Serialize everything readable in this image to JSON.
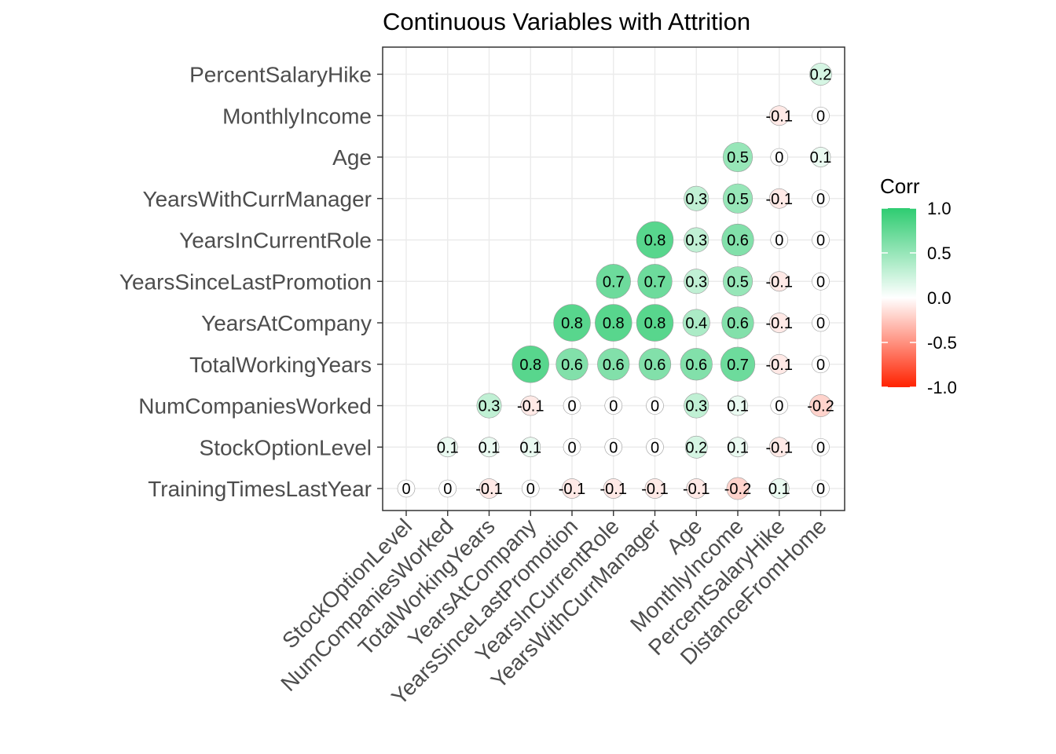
{
  "chart_data": {
    "type": "heatmap",
    "subtype": "lower-triangle correlation circles",
    "title": "Continuous Variables with Attrition",
    "x_categories": [
      "StockOptionLevel",
      "NumCompaniesWorked",
      "TotalWorkingYears",
      "YearsAtCompany",
      "YearsSinceLastPromotion",
      "YearsInCurrentRole",
      "YearsWithCurrManager",
      "Age",
      "MonthlyIncome",
      "PercentSalaryHike",
      "DistanceFromHome"
    ],
    "y_categories": [
      "TrainingTimesLastYear",
      "StockOptionLevel",
      "NumCompaniesWorked",
      "TotalWorkingYears",
      "YearsAtCompany",
      "YearsSinceLastPromotion",
      "YearsInCurrentRole",
      "YearsWithCurrManager",
      "Age",
      "MonthlyIncome",
      "PercentSalaryHike"
    ],
    "rows": [
      {
        "y": "TrainingTimesLastYear",
        "values": [
          0,
          0,
          -0.1,
          0,
          -0.1,
          -0.1,
          -0.1,
          -0.1,
          -0.2,
          0.1,
          0
        ]
      },
      {
        "y": "StockOptionLevel",
        "values": [
          null,
          0.1,
          0.1,
          0.1,
          0,
          0,
          0,
          0.2,
          0.1,
          -0.1,
          0
        ]
      },
      {
        "y": "NumCompaniesWorked",
        "values": [
          null,
          null,
          0.3,
          -0.1,
          0,
          0,
          0,
          0.3,
          0.1,
          0,
          -0.2
        ]
      },
      {
        "y": "TotalWorkingYears",
        "values": [
          null,
          null,
          null,
          0.8,
          0.6,
          0.6,
          0.6,
          0.6,
          0.7,
          -0.1,
          0
        ]
      },
      {
        "y": "YearsAtCompany",
        "values": [
          null,
          null,
          null,
          null,
          0.8,
          0.8,
          0.8,
          0.4,
          0.6,
          -0.1,
          0
        ]
      },
      {
        "y": "YearsSinceLastPromotion",
        "values": [
          null,
          null,
          null,
          null,
          null,
          0.7,
          0.7,
          0.3,
          0.5,
          -0.1,
          0
        ]
      },
      {
        "y": "YearsInCurrentRole",
        "values": [
          null,
          null,
          null,
          null,
          null,
          null,
          0.8,
          0.3,
          0.6,
          0,
          0
        ]
      },
      {
        "y": "YearsWithCurrManager",
        "values": [
          null,
          null,
          null,
          null,
          null,
          null,
          null,
          0.3,
          0.5,
          -0.1,
          0
        ]
      },
      {
        "y": "Age",
        "values": [
          null,
          null,
          null,
          null,
          null,
          null,
          null,
          null,
          0.5,
          0,
          0.1
        ]
      },
      {
        "y": "MonthlyIncome",
        "values": [
          null,
          null,
          null,
          null,
          null,
          null,
          null,
          null,
          null,
          -0.1,
          0
        ]
      },
      {
        "y": "PercentSalaryHike",
        "values": [
          null,
          null,
          null,
          null,
          null,
          null,
          null,
          null,
          null,
          null,
          0.2
        ]
      }
    ],
    "legend": {
      "title": "Corr",
      "ticks": [
        "1.0",
        "0.5",
        "0.0",
        "-0.5",
        "-1.0"
      ],
      "tick_values": [
        1,
        0.5,
        0,
        -0.5,
        -1
      ],
      "placement": "right"
    },
    "colors": {
      "high": "#2ECC71",
      "mid": "#FFFFFF",
      "low": "#FF2200"
    },
    "value_range": [
      -1,
      1
    ],
    "grid": true
  }
}
